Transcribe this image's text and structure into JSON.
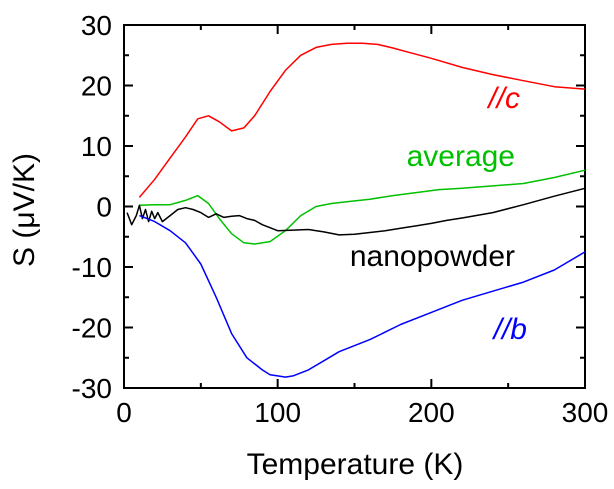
{
  "chart_data": {
    "type": "line",
    "xlabel": "Temperature (K)",
    "ylabel": "S (μV/K)",
    "xlim": [
      0,
      300
    ],
    "ylim": [
      -30,
      30
    ],
    "x_ticks": [
      "0",
      "100",
      "200",
      "300"
    ],
    "y_ticks": [
      "-30",
      "-20",
      "-10",
      "0",
      "10",
      "20",
      "30"
    ],
    "grid": false,
    "legend": "inline labels",
    "series": [
      {
        "name": "//c",
        "color": "#ff0000",
        "italic": true,
        "x": [
          10,
          20,
          30,
          40,
          48,
          55,
          62,
          70,
          78,
          85,
          95,
          105,
          115,
          125,
          135,
          145,
          155,
          165,
          175,
          185,
          200,
          220,
          240,
          260,
          280,
          300
        ],
        "y": [
          1.5,
          4.5,
          8,
          11.5,
          14.5,
          15,
          14,
          12.5,
          13,
          15,
          19,
          22.5,
          25,
          26.3,
          26.8,
          27,
          27,
          26.8,
          26.2,
          25.5,
          24.5,
          23,
          21.8,
          20.8,
          19.8,
          19.4
        ]
      },
      {
        "name": "average",
        "color": "#00c000",
        "italic": false,
        "x": [
          10,
          20,
          30,
          40,
          48,
          55,
          62,
          70,
          78,
          85,
          95,
          105,
          115,
          125,
          135,
          145,
          160,
          175,
          190,
          205,
          220,
          240,
          260,
          280,
          300
        ],
        "y": [
          0.2,
          0.3,
          0.3,
          1,
          1.8,
          0.5,
          -2,
          -4.5,
          -6,
          -6.2,
          -5.8,
          -4,
          -1.5,
          0,
          0.5,
          0.8,
          1.2,
          1.8,
          2.3,
          2.8,
          3,
          3.4,
          3.8,
          4.8,
          6
        ]
      },
      {
        "name": "nanopowder",
        "color": "#000000",
        "italic": false,
        "x": [
          2,
          5,
          8,
          10,
          12,
          14,
          16,
          18,
          20,
          22,
          25,
          30,
          35,
          40,
          45,
          50,
          55,
          60,
          65,
          70,
          75,
          80,
          85,
          90,
          95,
          100,
          110,
          120,
          130,
          140,
          150,
          160,
          170,
          180,
          190,
          200,
          210,
          220,
          240,
          260,
          280,
          300
        ],
        "y": [
          -1,
          -3,
          -1.5,
          0.2,
          -2,
          -0.5,
          -2.5,
          -0.8,
          -2,
          -1,
          -2.5,
          -1.5,
          -0.5,
          -0.2,
          -0.5,
          -1,
          -1.8,
          -1.2,
          -1.8,
          -1.6,
          -1.5,
          -2,
          -2.3,
          -3,
          -3.5,
          -4,
          -3.9,
          -3.8,
          -4.2,
          -4.7,
          -4.6,
          -4.3,
          -4,
          -3.6,
          -3.2,
          -2.8,
          -2.3,
          -1.9,
          -1,
          0.3,
          1.7,
          3
        ]
      },
      {
        "name": "//b",
        "color": "#0000ff",
        "italic": true,
        "x": [
          10,
          15,
          20,
          30,
          40,
          50,
          60,
          70,
          80,
          90,
          95,
          100,
          105,
          110,
          120,
          130,
          140,
          160,
          180,
          200,
          220,
          240,
          260,
          280,
          300
        ],
        "y": [
          -1.5,
          -2,
          -2.5,
          -4,
          -6,
          -9.5,
          -15,
          -21,
          -25,
          -27,
          -27.8,
          -28,
          -28.2,
          -28,
          -27,
          -25.5,
          -24,
          -22,
          -19.5,
          -17.5,
          -15.5,
          -14,
          -12.5,
          -10.5,
          -7.5
        ]
      }
    ]
  }
}
